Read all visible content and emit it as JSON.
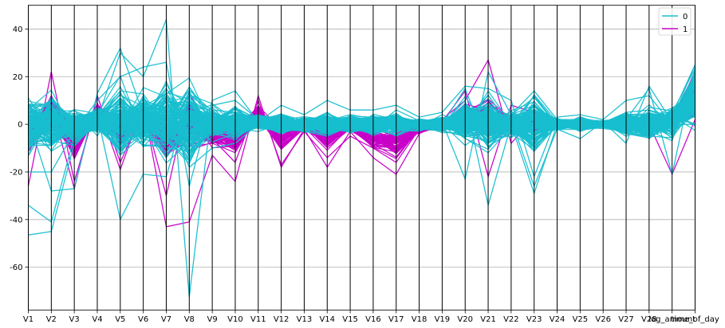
{
  "chart_data": {
    "type": "line",
    "subtype": "parallel-coordinates",
    "title": "",
    "xlabel": "",
    "ylabel": "",
    "grid": true,
    "ylim": [
      -78,
      50
    ],
    "yticks": [
      40,
      20,
      0,
      -20,
      -40,
      -60
    ],
    "legend": {
      "placement": "top-right",
      "entries": [
        {
          "label": "0",
          "color": "#17becf"
        },
        {
          "label": "1",
          "color": "#c800c8"
        }
      ]
    },
    "colors": {
      "0": "#17becf",
      "1": "#c800c8",
      "axis": "#000000",
      "grid": "#b0b0b0"
    },
    "categories": [
      "V1",
      "V2",
      "V3",
      "V4",
      "V5",
      "V6",
      "V7",
      "V8",
      "V9",
      "V10",
      "V11",
      "V12",
      "V13",
      "V14",
      "V15",
      "V16",
      "V17",
      "V18",
      "V19",
      "V20",
      "V21",
      "V22",
      "V23",
      "V24",
      "V25",
      "V26",
      "V27",
      "V28",
      "log_amount",
      "time_of_day"
    ],
    "class_0_profile": {
      "typical": [
        0,
        1,
        -1,
        2,
        0,
        1,
        2,
        0,
        0,
        0,
        1,
        0,
        0,
        0,
        0,
        0,
        0,
        0,
        0,
        1,
        0,
        0,
        0,
        0,
        0,
        0,
        0,
        0,
        1,
        12
      ],
      "spread": [
        14,
        14,
        8,
        6,
        18,
        14,
        18,
        20,
        8,
        8,
        4,
        5,
        4,
        6,
        4,
        5,
        6,
        3,
        4,
        10,
        14,
        6,
        14,
        3,
        3,
        2,
        6,
        8,
        8,
        14
      ],
      "extremes": [
        {
          "name": "0",
          "values": [
            -46.5,
            -45,
            -8,
            2,
            30,
            20,
            44,
            -72.5,
            8,
            10,
            2,
            0,
            0,
            2,
            2,
            0,
            0,
            0,
            0,
            10,
            -34,
            0,
            -29,
            0,
            0,
            0,
            2,
            15,
            -21,
            24
          ]
        },
        {
          "name": "0",
          "values": [
            -34,
            -41,
            -5,
            4,
            -40,
            -21,
            -22,
            12,
            6,
            5,
            0,
            3,
            1,
            3,
            0,
            3,
            3,
            1,
            1,
            -23,
            22,
            4,
            14,
            2,
            2,
            0,
            5,
            6,
            3,
            0
          ]
        },
        {
          "name": "0",
          "values": [
            -20,
            -20,
            -3,
            10,
            20,
            24,
            26,
            -26,
            10,
            14,
            1,
            8,
            4,
            10,
            6,
            6,
            8,
            3,
            5,
            16,
            15,
            10,
            -22,
            3,
            4,
            2,
            10,
            12,
            0,
            20
          ]
        },
        {
          "name": "0",
          "values": [
            2,
            -28,
            -27,
            13,
            32,
            4,
            5,
            -18,
            -10,
            -8,
            0,
            -4,
            0,
            -3,
            2,
            2,
            2,
            0,
            0,
            15,
            -10,
            2,
            -26,
            -2,
            -6,
            1,
            -8,
            16,
            1,
            10
          ]
        }
      ]
    },
    "class_1_profile": {
      "typical": [
        -6,
        6,
        -8,
        6,
        -4,
        3,
        -6,
        0,
        -4,
        -6,
        5,
        -6,
        -1,
        -6,
        -1,
        -6,
        -8,
        -2,
        0,
        3,
        2,
        1,
        0,
        0,
        0,
        0,
        0,
        0,
        2,
        12
      ],
      "spread": [
        8,
        8,
        8,
        3,
        8,
        5,
        10,
        14,
        6,
        8,
        3,
        6,
        2,
        6,
        2,
        6,
        7,
        2,
        2,
        5,
        10,
        4,
        4,
        1,
        1,
        1,
        2,
        2,
        3,
        12
      ],
      "extremes": [
        {
          "name": "1",
          "values": [
            -26,
            22,
            -24,
            9,
            -19,
            8,
            -43,
            -41,
            -13,
            -24,
            12,
            -18,
            -2,
            -18,
            -3,
            -14,
            -21,
            -4,
            2,
            10,
            27,
            -8,
            3,
            0,
            0,
            0,
            0,
            0,
            -21,
            2
          ]
        },
        {
          "name": "1",
          "values": [
            -10,
            8,
            -27,
            12,
            -16,
            6,
            -30,
            13,
            -6,
            -16,
            10,
            -17,
            -3,
            -14,
            -5,
            -10,
            -16,
            -2,
            1,
            14,
            -22,
            8,
            5,
            1,
            0,
            1,
            2,
            1,
            1,
            4
          ]
        }
      ]
    }
  }
}
